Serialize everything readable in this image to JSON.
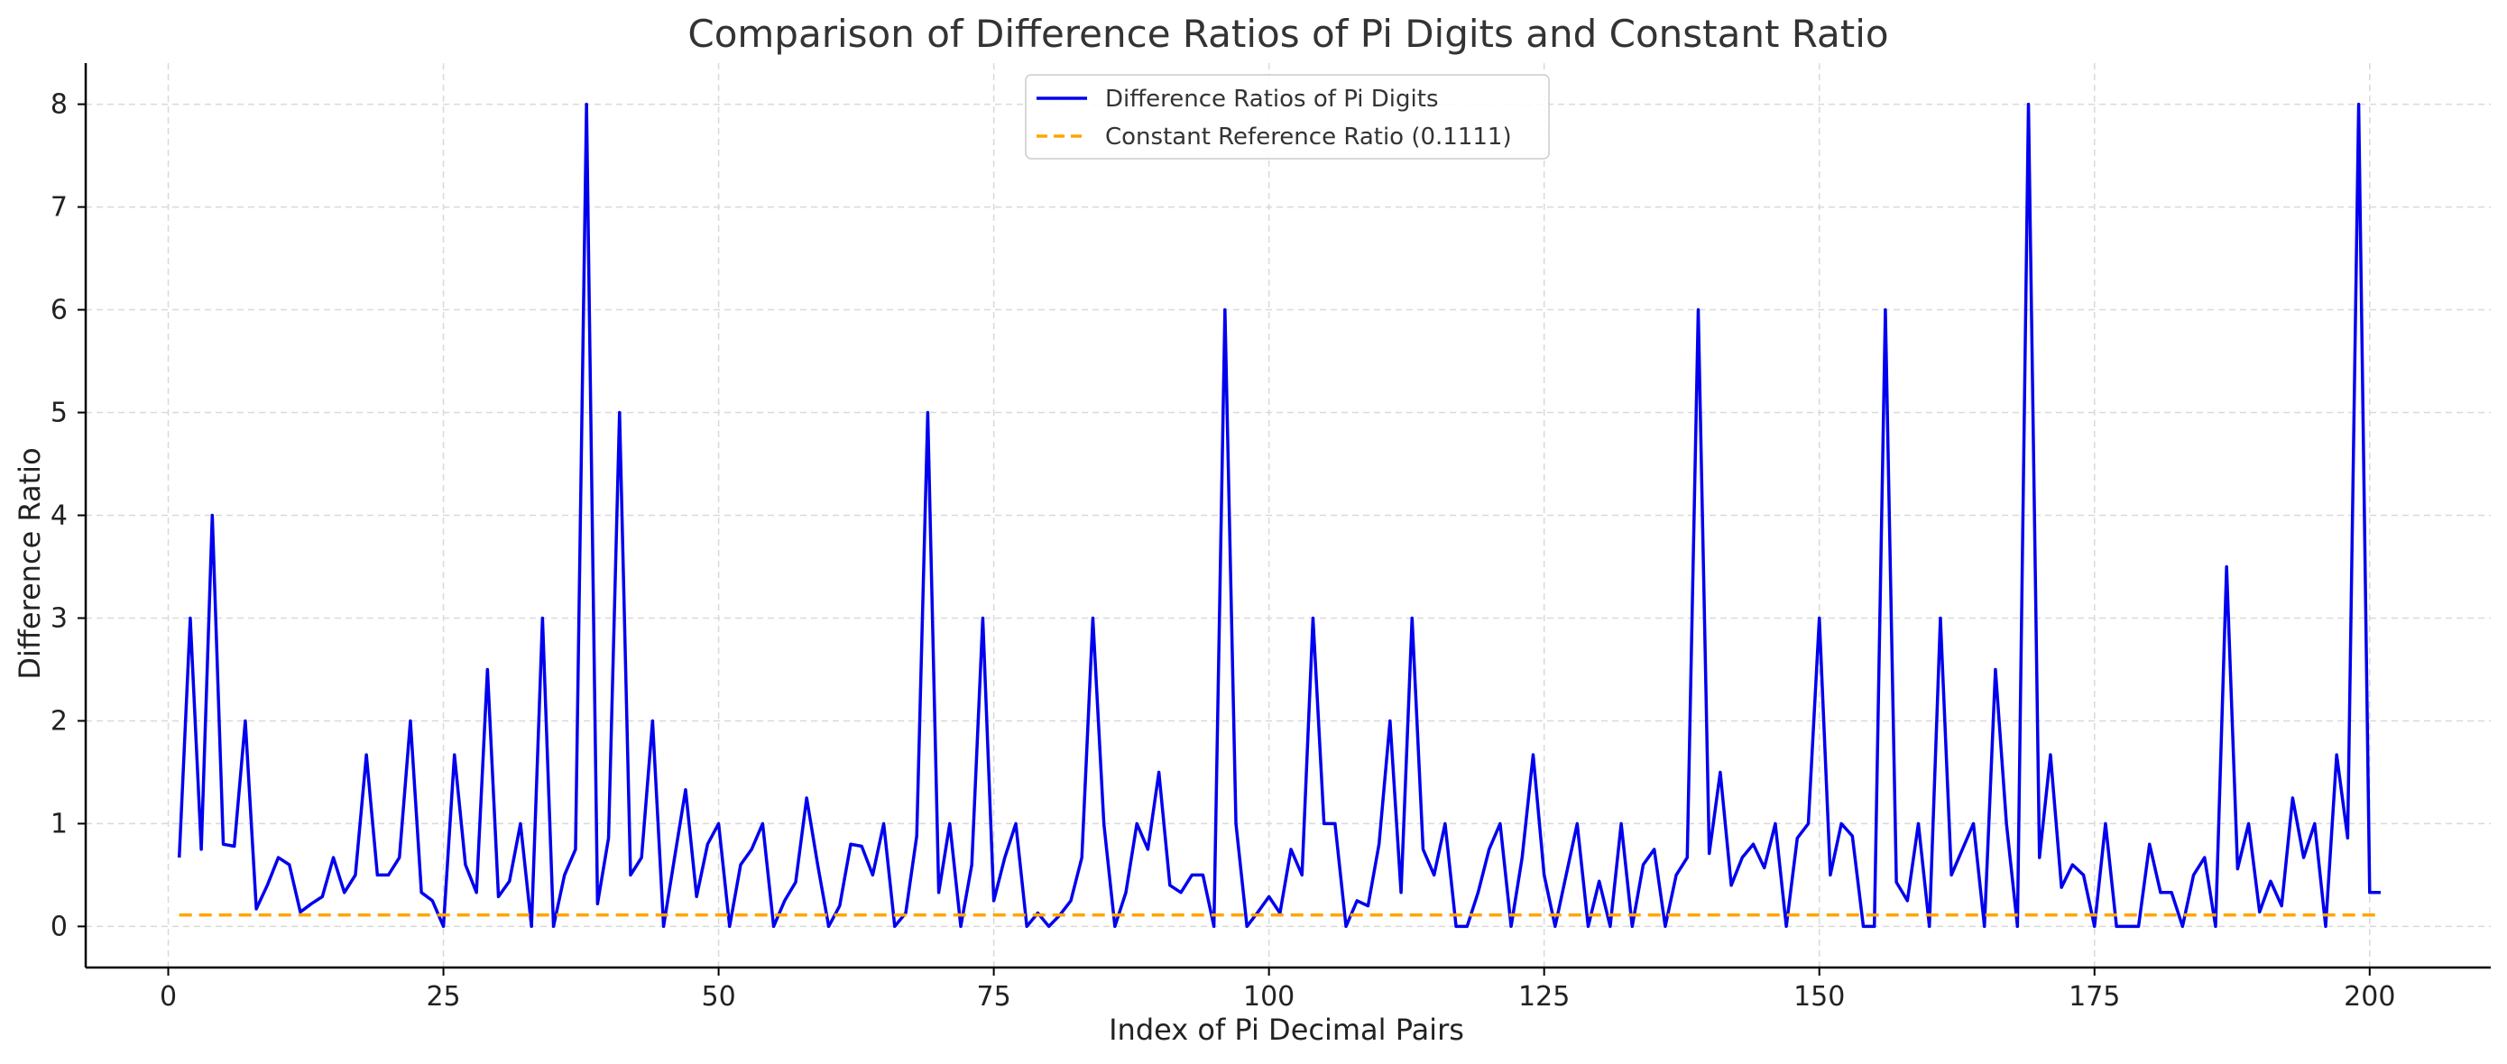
{
  "chart_data": {
    "type": "line",
    "title": "Comparison of Difference Ratios of Pi Digits and Constant Ratio",
    "xlabel": "Index of Pi Decimal Pairs",
    "ylabel": "Difference Ratio",
    "xlim": [
      -7.5,
      211
    ],
    "ylim": [
      -0.4,
      8.4
    ],
    "x_ticks": [
      0,
      25,
      50,
      75,
      100,
      125,
      150,
      175,
      200
    ],
    "y_ticks": [
      0,
      1,
      2,
      3,
      4,
      5,
      6,
      7,
      8
    ],
    "grid": true,
    "legend_position": "top-center",
    "series": [
      {
        "name": "Difference Ratios of Pi Digits",
        "color": "#0000ee",
        "style": "solid",
        "x_start": 1,
        "values": [
          0.67,
          3,
          0.75,
          4,
          0.8,
          0.78,
          2,
          0.17,
          0.4,
          0.67,
          0.6,
          0.14,
          0.22,
          0.29,
          0.67,
          0.33,
          0.5,
          1.67,
          0.5,
          0.5,
          0.67,
          2,
          0.33,
          0.25,
          0,
          1.67,
          0.6,
          0.33,
          2.5,
          0.29,
          0.44,
          1,
          0,
          3,
          0,
          0.5,
          0.75,
          8,
          0.22,
          0.86,
          5,
          0.5,
          0.67,
          2,
          0,
          0.67,
          1.33,
          0.29,
          0.8,
          1,
          0,
          0.6,
          0.75,
          1,
          0,
          0.25,
          0.43,
          1.25,
          0.6,
          0,
          0.2,
          0.8,
          0.78,
          0.5,
          1,
          0,
          0.13,
          0.88,
          5,
          0.33,
          1,
          0,
          0.6,
          3,
          0.25,
          0.67,
          1,
          0,
          0.13,
          0,
          0.11,
          0.25,
          0.67,
          3,
          1,
          0,
          0.33,
          1,
          0.75,
          1.5,
          0.4,
          0.33,
          0.5,
          0.5,
          0,
          6,
          1,
          0,
          0.14,
          0.29,
          0.13,
          0.75,
          0.5,
          3,
          1,
          1,
          0,
          0.25,
          0.2,
          0.8,
          2,
          0.33,
          3,
          0.75,
          0.5,
          1,
          0,
          0,
          0.33,
          0.75,
          1,
          0,
          0.67,
          1.67,
          0.5,
          0,
          0.5,
          1,
          0,
          0.44,
          0,
          1,
          0,
          0.6,
          0.75,
          0,
          0.5,
          0.67,
          6,
          0.71,
          1.5,
          0.4,
          0.67,
          0.8,
          0.57,
          1,
          0,
          0.86,
          1,
          3,
          0.5,
          1,
          0.88,
          0,
          0,
          6,
          0.43,
          0.25,
          1,
          0,
          3,
          0.5,
          0.75,
          1,
          0,
          2.5,
          1,
          0,
          8,
          0.67,
          1.67,
          0.38,
          0.6,
          0.5,
          0,
          1,
          0,
          0,
          0,
          0.8,
          0.33,
          0.33,
          0,
          0.5,
          0.67,
          0,
          3.5,
          0.56,
          1,
          0.14,
          0.44,
          0.2,
          1.25,
          0.67,
          1,
          0,
          1.67,
          0.86,
          8,
          0.33,
          0.33
        ]
      },
      {
        "name": "Constant Reference Ratio (0.1111)",
        "color": "#ffa500",
        "style": "dashed",
        "x": [
          1,
          201
        ],
        "values": [
          0.1111,
          0.1111
        ]
      }
    ]
  }
}
